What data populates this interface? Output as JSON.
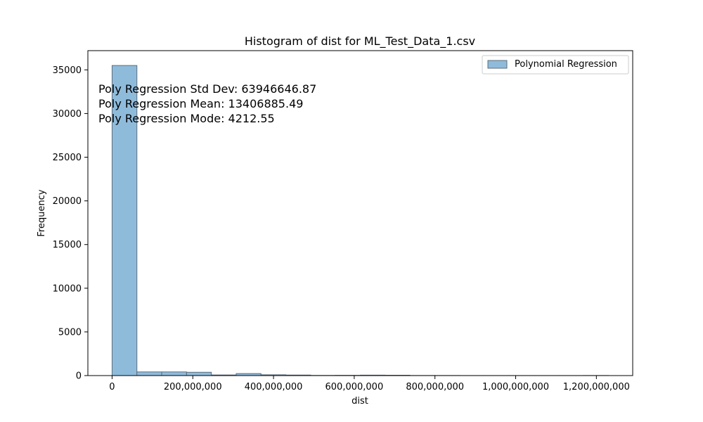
{
  "chart_data": {
    "type": "bar",
    "title": "Histogram of dist for ML_Test_Data_1.csv",
    "xlabel": "dist",
    "ylabel": "Frequency",
    "xlim": [
      -60000000,
      1290000000
    ],
    "ylim": [
      0,
      37200
    ],
    "xticks": [
      0,
      200000000,
      400000000,
      600000000,
      800000000,
      1000000000,
      1200000000
    ],
    "xtick_labels": [
      "0",
      "200,000,000",
      "400,000,000",
      "600,000,000",
      "800,000,000",
      "1,000,000,000",
      "1,200,000,000"
    ],
    "yticks": [
      0,
      5000,
      10000,
      15000,
      20000,
      25000,
      30000,
      35000
    ],
    "ytick_labels": [
      "0",
      "5000",
      "10000",
      "15000",
      "20000",
      "25000",
      "30000",
      "35000"
    ],
    "grid": false,
    "legend": "upper-right",
    "series": [
      {
        "name": "Polynomial Regression",
        "color": "#8fbbdb",
        "edge_color": "#5d6d7a",
        "bin_edges": [
          0,
          61500000,
          123000000,
          184500000,
          246000000,
          307500000,
          369000000,
          430500000,
          492000000,
          553500000,
          615000000,
          676500000,
          738000000,
          799500000,
          861000000,
          922500000,
          984000000,
          1045500000,
          1107000000,
          1168500000,
          1230000000
        ],
        "counts": [
          35500,
          420,
          420,
          380,
          70,
          230,
          90,
          60,
          20,
          30,
          50,
          40,
          10,
          10,
          5,
          5,
          5,
          5,
          5,
          10
        ]
      }
    ],
    "annotations": [
      "Poly Regression Std Dev: 63946646.87",
      "Poly Regression Mean: 13406885.49",
      "Poly Regression Mode: 4212.55"
    ]
  }
}
